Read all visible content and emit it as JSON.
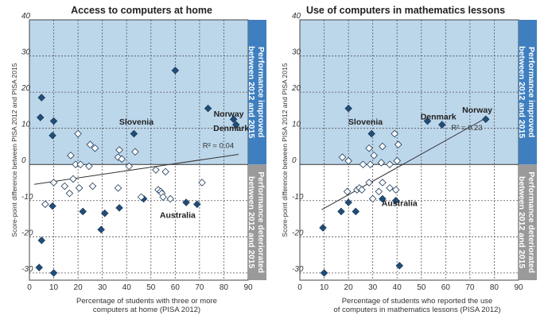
{
  "figure": {
    "shared_ylabel": "Score-point difference between PISA 2012 and PISA 2015",
    "band_labels": {
      "improved": [
        "Performance improved",
        "between 2012 and 2015"
      ],
      "deteriorated": [
        "Performance deteriorated",
        "between 2012 and 2015"
      ]
    }
  },
  "colors": {
    "improved_band": "#bcd6ea",
    "deteriorated_band": "#ffffff",
    "improved_sidebar": "#3f7fbf",
    "deteriorated_sidebar": "#9a9a9a",
    "significant_marker": "#1f4e79",
    "nonsignificant_marker": "#ffffff",
    "marker_stroke": "#1f3a5a",
    "trend_line": "#333333",
    "grid": "#555555"
  },
  "chart_data": [
    {
      "type": "scatter",
      "title": "Access to computers at home",
      "xlabel": [
        "Percentage of students with three or more",
        "computers at home (PISA 2012)"
      ],
      "xlim": [
        0,
        90
      ],
      "ylim": [
        -32,
        40
      ],
      "xticks": [
        0,
        10,
        20,
        30,
        40,
        50,
        60,
        70,
        80,
        90
      ],
      "yticks": [
        -30,
        -20,
        -10,
        0,
        10,
        20,
        30,
        40
      ],
      "grid": true,
      "trend": {
        "x": [
          2,
          86
        ],
        "y": [
          -5.5,
          2.8
        ],
        "r2_label": "R² = 0.04"
      },
      "annotations": [
        {
          "text": "Slovenia",
          "x": 44,
          "y": 11
        },
        {
          "text": "Norway",
          "x": 82,
          "y": 13.2
        },
        {
          "text": "Denmark",
          "x": 83,
          "y": 9.3
        },
        {
          "text": "Australia",
          "x": 61,
          "y": -14.8
        }
      ],
      "series": [
        {
          "significant": true,
          "points": [
            [
              5,
              18.5
            ],
            [
              4.5,
              13
            ],
            [
              10,
              12
            ],
            [
              9.5,
              8
            ],
            [
              43,
              8.5
            ],
            [
              60,
              26
            ],
            [
              73.5,
              15.5
            ],
            [
              84,
              12.5
            ],
            [
              85,
              11
            ],
            [
              9.5,
              -11.5
            ],
            [
              22,
              -13
            ],
            [
              31,
              -13.5
            ],
            [
              37,
              -12
            ],
            [
              47,
              -9.5
            ],
            [
              64.5,
              -10.5
            ],
            [
              69,
              -11
            ],
            [
              29.5,
              -18
            ],
            [
              5,
              -21
            ],
            [
              4,
              -28.5
            ],
            [
              10,
              -30
            ]
          ]
        },
        {
          "significant": false,
          "points": [
            [
              20,
              8.5
            ],
            [
              25,
              5.5
            ],
            [
              27,
              4.5
            ],
            [
              17,
              2.5
            ],
            [
              19,
              0
            ],
            [
              21,
              0
            ],
            [
              24.5,
              -0.5
            ],
            [
              37,
              4
            ],
            [
              36.5,
              2
            ],
            [
              38,
              1.5
            ],
            [
              43.5,
              3.5
            ],
            [
              41,
              -0.5
            ],
            [
              52,
              -1.5
            ],
            [
              56,
              -2
            ],
            [
              10,
              -5
            ],
            [
              14.5,
              -6
            ],
            [
              18,
              -4
            ],
            [
              20.5,
              -6.5
            ],
            [
              26,
              -6
            ],
            [
              36.5,
              -6.5
            ],
            [
              16.5,
              -8
            ],
            [
              46,
              -9
            ],
            [
              53,
              -7
            ],
            [
              54,
              -7.5
            ],
            [
              54.5,
              -8
            ],
            [
              55,
              -9
            ],
            [
              58,
              -9.5
            ],
            [
              71,
              -5
            ],
            [
              6.5,
              -11
            ]
          ]
        }
      ]
    },
    {
      "type": "scatter",
      "title": "Use of computers in mathematics lessons",
      "xlabel": [
        "Percentage of students who reported the use",
        "of computers in mathematics lessons (PISA 2012)"
      ],
      "xlim": [
        0,
        90
      ],
      "ylim": [
        -32,
        40
      ],
      "xticks": [
        0,
        10,
        20,
        30,
        40,
        50,
        60,
        70,
        80,
        90
      ],
      "yticks": [
        -30,
        -20,
        -10,
        0,
        10,
        20,
        30,
        40
      ],
      "grid": true,
      "trend": {
        "x": [
          9,
          77
        ],
        "y": [
          -12.5,
          13
        ],
        "r2_label": "R² = 0.23"
      },
      "annotations": [
        {
          "text": "Slovenia",
          "x": 27,
          "y": 11
        },
        {
          "text": "Denmark",
          "x": 57,
          "y": 12.5
        },
        {
          "text": "Norway",
          "x": 73,
          "y": 14.3
        },
        {
          "text": "Australia",
          "x": 41,
          "y": -11.5
        }
      ],
      "series": [
        {
          "significant": true,
          "points": [
            [
              20,
              15.5
            ],
            [
              29.5,
              8.5
            ],
            [
              52.5,
              12
            ],
            [
              58.5,
              11
            ],
            [
              76.5,
              12.5
            ],
            [
              20,
              -10.5
            ],
            [
              17,
              -13
            ],
            [
              23,
              -13
            ],
            [
              34,
              -9.5
            ],
            [
              39.5,
              -10
            ],
            [
              9.5,
              -17.5
            ],
            [
              41,
              -28
            ],
            [
              10,
              -30
            ]
          ]
        },
        {
          "significant": false,
          "points": [
            [
              28.5,
              4.5
            ],
            [
              30.5,
              2.5
            ],
            [
              34,
              5
            ],
            [
              39,
              8.5
            ],
            [
              40.5,
              5.5
            ],
            [
              17.5,
              2
            ],
            [
              20,
              1
            ],
            [
              26,
              0
            ],
            [
              29,
              0
            ],
            [
              33.5,
              0.5
            ],
            [
              37,
              0
            ],
            [
              40,
              1
            ],
            [
              19.5,
              -7.5
            ],
            [
              23.5,
              -7
            ],
            [
              24.5,
              -6.5
            ],
            [
              25.5,
              -7
            ],
            [
              28.5,
              -5
            ],
            [
              30,
              -9.5
            ],
            [
              34,
              -5
            ],
            [
              37,
              -6.5
            ],
            [
              39.5,
              -7
            ],
            [
              32.5,
              -7.5
            ]
          ]
        }
      ]
    }
  ]
}
